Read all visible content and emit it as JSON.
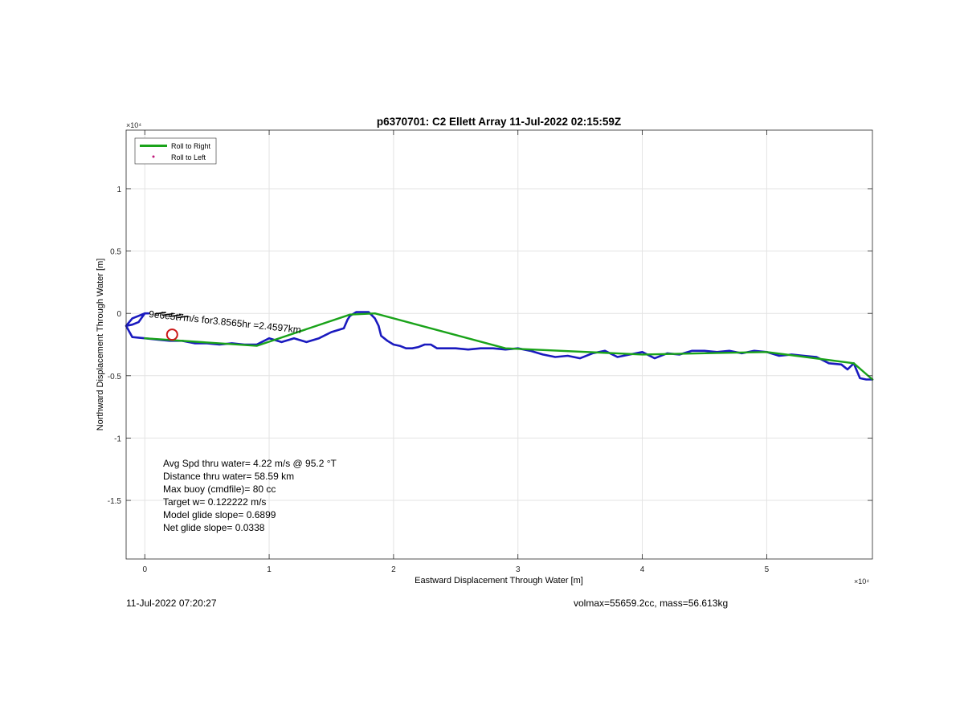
{
  "chart_data": {
    "type": "line",
    "title": "p6370701: C2 Ellett Array 11-Jul-2022 02:15:59Z",
    "xlabel": "Eastward Displacement Through Water [m]",
    "ylabel": "Northward Displacement Through Water [m]",
    "x_exponent": "×10⁴",
    "y_exponent": "×10⁴",
    "xlim": [
      -0.15,
      5.85
    ],
    "ylim": [
      -1.97,
      1.47
    ],
    "xticks": [
      0,
      1,
      2,
      3,
      4,
      5
    ],
    "xtick_labels": [
      "0",
      "1",
      "2",
      "3",
      "4",
      "5"
    ],
    "yticks": [
      1,
      0.5,
      0,
      -0.5,
      -1,
      -1.5
    ],
    "ytick_labels": [
      "1",
      "0.5",
      "0",
      "-0.5",
      "-1",
      "-1.5"
    ],
    "grid": true,
    "legend_position": "top-left",
    "legend": [
      {
        "label": "Roll to Right",
        "color": "#1aa31a",
        "style": "line"
      },
      {
        "label": "Roll to Left",
        "color": "#c0187a",
        "style": "marker"
      }
    ],
    "series": [
      {
        "name": "Roll to Right",
        "color": "#1aa31a",
        "x": [
          0.0,
          0.9,
          1.65,
          1.85,
          2.9,
          4.0,
          5.0,
          5.7,
          5.85
        ],
        "y": [
          -0.2,
          -0.26,
          -0.01,
          0.0,
          -0.28,
          -0.33,
          -0.31,
          -0.4,
          -0.53
        ]
      },
      {
        "color": "#1a1abf",
        "x": [
          -0.15,
          -0.1,
          -0.05,
          0.0,
          0.03,
          0.0,
          -0.05,
          -0.1,
          -0.15,
          -0.1,
          0.0,
          0.1,
          0.2,
          0.3,
          0.4,
          0.5,
          0.6,
          0.7,
          0.8,
          0.9,
          1.0,
          1.1,
          1.2,
          1.3,
          1.4,
          1.5,
          1.6,
          1.63,
          1.65,
          1.7,
          1.75,
          1.8,
          1.85,
          1.88,
          1.9,
          1.95,
          2.0,
          2.05,
          2.1,
          2.15,
          2.2,
          2.25,
          2.3,
          2.35,
          2.4,
          2.5,
          2.6,
          2.7,
          2.8,
          2.9,
          3.0,
          3.1,
          3.2,
          3.3,
          3.4,
          3.5,
          3.6,
          3.7,
          3.8,
          3.9,
          4.0,
          4.1,
          4.2,
          4.3,
          4.4,
          4.5,
          4.6,
          4.7,
          4.8,
          4.9,
          5.0,
          5.1,
          5.2,
          5.3,
          5.4,
          5.5,
          5.6,
          5.65,
          5.7,
          5.72,
          5.75,
          5.8,
          5.85
        ],
        "y": [
          -0.1,
          -0.09,
          -0.07,
          0.0,
          0.0,
          0.0,
          -0.02,
          -0.04,
          -0.1,
          -0.19,
          -0.2,
          -0.21,
          -0.22,
          -0.22,
          -0.24,
          -0.24,
          -0.25,
          -0.24,
          -0.25,
          -0.25,
          -0.2,
          -0.23,
          -0.2,
          -0.23,
          -0.2,
          -0.15,
          -0.12,
          -0.05,
          -0.02,
          0.01,
          0.01,
          0.01,
          -0.04,
          -0.1,
          -0.18,
          -0.22,
          -0.25,
          -0.26,
          -0.28,
          -0.28,
          -0.27,
          -0.25,
          -0.25,
          -0.28,
          -0.28,
          -0.28,
          -0.29,
          -0.28,
          -0.28,
          -0.29,
          -0.28,
          -0.3,
          -0.33,
          -0.35,
          -0.34,
          -0.36,
          -0.32,
          -0.3,
          -0.35,
          -0.33,
          -0.31,
          -0.36,
          -0.32,
          -0.33,
          -0.3,
          -0.3,
          -0.31,
          -0.3,
          -0.32,
          -0.3,
          -0.31,
          -0.34,
          -0.33,
          -0.34,
          -0.35,
          -0.4,
          -0.41,
          -0.45,
          -0.4,
          -0.45,
          -0.52,
          -0.53,
          -0.53
        ]
      }
    ],
    "markers": [
      {
        "shape": "circle",
        "color": "#cc1a1a",
        "x": 0.22,
        "y": -0.17
      }
    ],
    "annotations": [
      {
        "text": "9e6e5t7m/s for3.8565hr =2.4597km",
        "x": 0.03,
        "y": -0.03
      }
    ],
    "stats_text": [
      "Avg Spd thru water=  4.22 m/s @  95.2 °T",
      "Distance thru water= 58.59 km",
      "Max buoy (cmdfile)= 80 cc",
      "Target w= 0.122222 m/s",
      "Model glide slope= 0.6899",
      "Net glide slope= 0.0338"
    ]
  },
  "footer": {
    "left": "11-Jul-2022 07:20:27",
    "right": "volmax=55659.2cc, mass=56.613kg"
  }
}
